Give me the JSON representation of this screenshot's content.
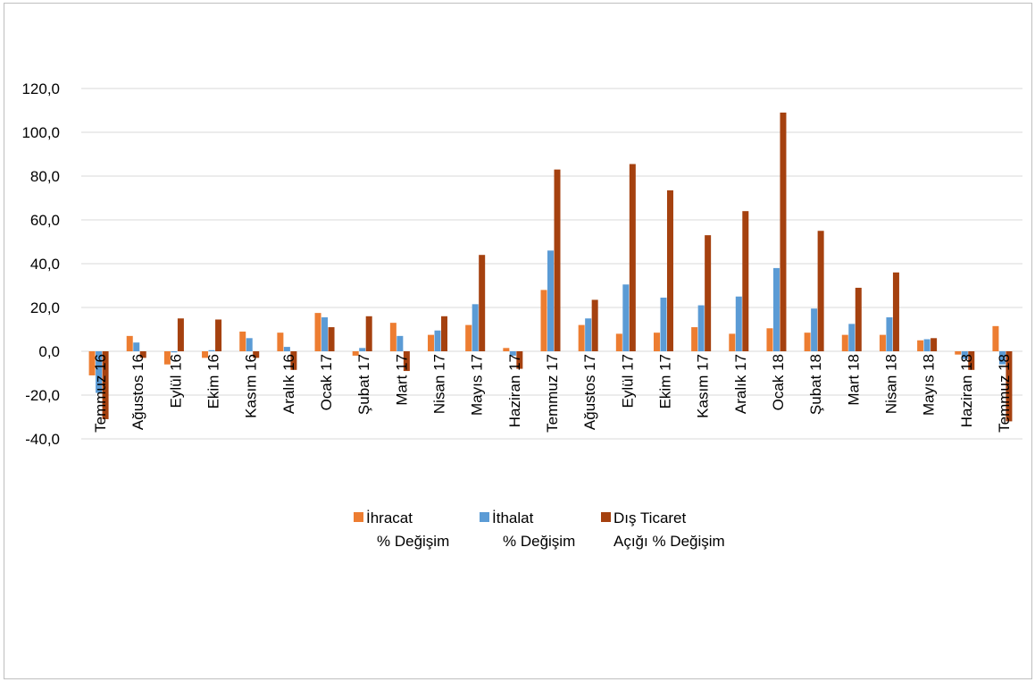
{
  "chart_data": {
    "type": "bar",
    "title": "",
    "xlabel": "",
    "ylabel": "",
    "ylim": [
      -40,
      120
    ],
    "ytick_step": 20,
    "ytick_labels": [
      "-40,0",
      "-20,0",
      "0,0",
      "20,0",
      "40,0",
      "60,0",
      "80,0",
      "100,0",
      "120,0"
    ],
    "grid": "horizontal",
    "legend_position": "bottom",
    "categories": [
      "Temmuz 16",
      "Ağustos 16",
      "Eylül 16",
      "Ekim 16",
      "Kasım 16",
      "Aralık 16",
      "Ocak 17",
      "Şubat 17",
      "Mart 17",
      "Nisan 17",
      "Mayıs 17",
      "Haziran 17",
      "Temmuz 17",
      "Ağustos 17",
      "Eylül 17",
      "Ekim 17",
      "Kasım 17",
      "Aralık 17",
      "Ocak 18",
      "Şubat 18",
      "Mart 18",
      "Nisan 18",
      "Mayıs 18",
      "Haziran 18",
      "Temmuz 18"
    ],
    "series": [
      {
        "name_lines": [
          "İhracat",
          "% Değişim"
        ],
        "color": "#ed7d31",
        "values": [
          -11,
          7,
          -6,
          -3,
          9,
          8.5,
          17.5,
          -2,
          13,
          7.5,
          12,
          1.5,
          28,
          12,
          8,
          8.5,
          11,
          8,
          10.5,
          8.5,
          7.5,
          7.5,
          5,
          -1.5,
          11.5
        ]
      },
      {
        "name_lines": [
          "İthalat",
          "% Değişim"
        ],
        "color": "#5b9bd5",
        "values": [
          -19,
          4,
          -0.5,
          0.5,
          6,
          2,
          15.5,
          1.5,
          7,
          9.5,
          21.5,
          -2,
          46,
          15,
          30.5,
          24.5,
          21,
          25,
          38,
          19.5,
          12.5,
          15.5,
          5.5,
          -3.5,
          -6
        ]
      },
      {
        "name_lines": [
          "Dış Ticaret",
          "Açığı % Değişim"
        ],
        "color": "#a5410f",
        "values": [
          -31,
          -3,
          15,
          14.5,
          -3,
          -8.5,
          11,
          16,
          -9,
          16,
          44,
          -8,
          83,
          23.5,
          85.5,
          73.5,
          53,
          64,
          109,
          55,
          29,
          36,
          6,
          -8.5,
          -32
        ]
      }
    ]
  }
}
